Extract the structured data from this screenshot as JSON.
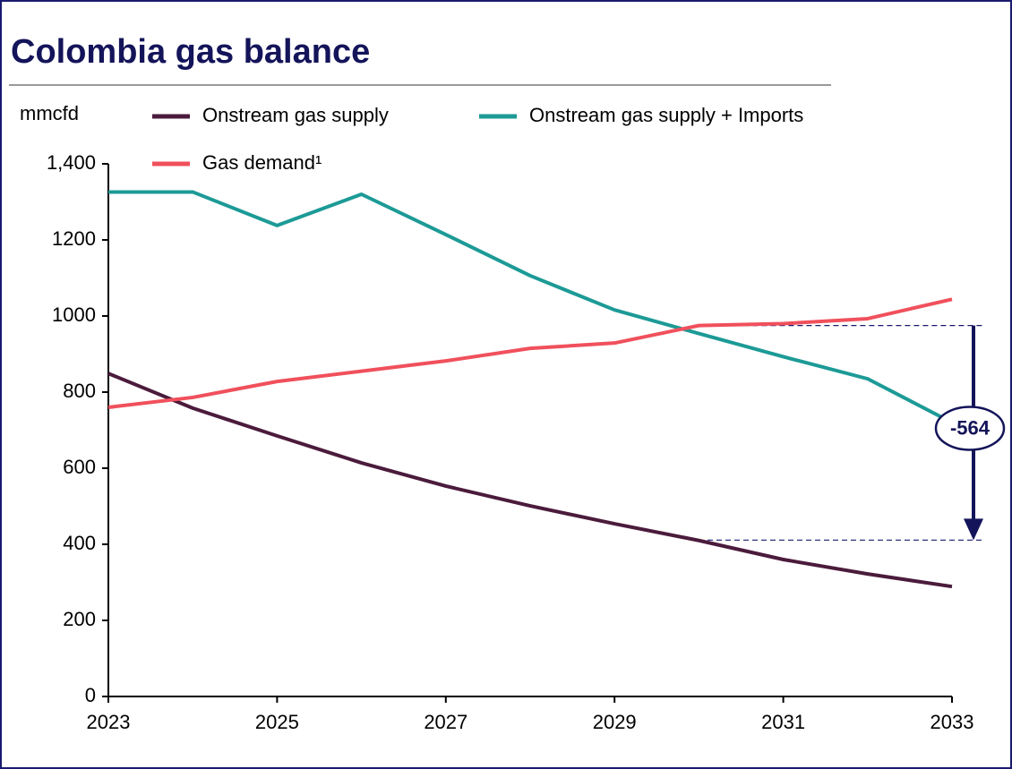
{
  "chart_data": {
    "type": "line",
    "title": "Colombia gas balance",
    "y_label": "mmcfd",
    "x": [
      2023,
      2024,
      2025,
      2026,
      2027,
      2028,
      2029,
      2030,
      2031,
      2032,
      2033
    ],
    "xlim": [
      2023,
      2033
    ],
    "xticks": [
      2023,
      2025,
      2027,
      2029,
      2031,
      2033
    ],
    "ylim": [
      0,
      1400
    ],
    "yticks": [
      0,
      200,
      400,
      600,
      800,
      1000,
      1200,
      {
        "value": 1400,
        "label": "1,400"
      }
    ],
    "series": [
      {
        "name": "Onstream gas supply",
        "color": "#4b1b3c",
        "values": [
          849,
          758,
          685,
          614,
          553,
          501,
          454,
          410,
          360,
          322,
          289
        ]
      },
      {
        "name": "Onstream gas supply + Imports",
        "color": "#1c9a96",
        "values": [
          1326,
          1326,
          1238,
          1320,
          1214,
          1106,
          1016,
          954,
          893,
          835,
          720
        ]
      },
      {
        "name": "Gas demand¹",
        "color": "#f0505c",
        "values": [
          760,
          786,
          828,
          855,
          882,
          915,
          929,
          975,
          980,
          993,
          1044
        ]
      }
    ],
    "annotation": {
      "label": "-564",
      "top": 975,
      "bottom": 411
    }
  }
}
